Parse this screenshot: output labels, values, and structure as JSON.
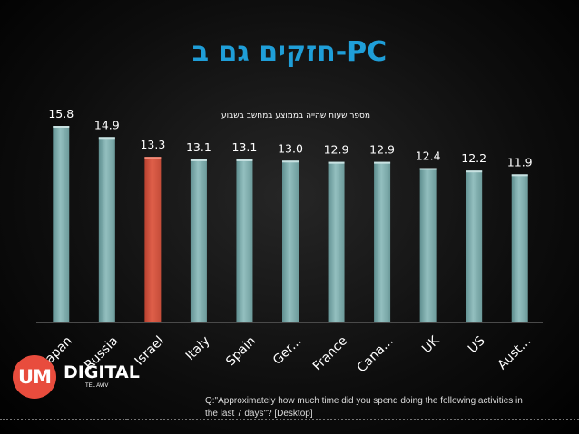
{
  "slide": {
    "title": "חזקים גם ב-PC",
    "footnote_line1": "Q:\"Approximately how much time did you spend doing the following activities in",
    "footnote_line2": "the last 7 days\"? [Desktop]",
    "logo_mark": "UM",
    "logo_word": "DIGITAL",
    "logo_sub": "TEL AVIV"
  },
  "chart_data": {
    "type": "bar",
    "title": "מספר שעות שהייה בממוצע במחשב בשבוע",
    "categories": [
      "Japan",
      "Russia",
      "Israel",
      "Italy",
      "Spain",
      "Ger...",
      "France",
      "Cana...",
      "UK",
      "US",
      "Aust..."
    ],
    "values": [
      15.8,
      14.9,
      13.3,
      13.1,
      13.1,
      13.0,
      12.9,
      12.9,
      12.4,
      12.2,
      11.9
    ],
    "data_labels": [
      "15.8",
      "14.9",
      "13.3",
      "13.1",
      "13.1",
      "13.0",
      "12.9",
      "12.9",
      "12.4",
      "12.2",
      "11.9"
    ],
    "highlight_category": "Israel",
    "colors": {
      "default": "#93bfbf",
      "highlight": "#e0604a"
    },
    "xlabel": "",
    "ylabel": "",
    "grid": false,
    "legend": "none"
  }
}
